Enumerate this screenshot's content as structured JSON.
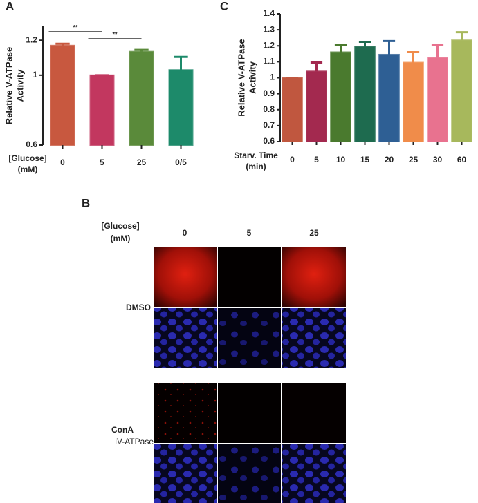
{
  "chart_data": [
    {
      "type": "bar",
      "label": "A",
      "ylabel": [
        "Relative V-ATPase",
        "Activity"
      ],
      "xlabel": [
        "[Glucose]",
        "(mM)"
      ],
      "categories": [
        "0",
        "5",
        "25",
        "0/5"
      ],
      "values": [
        1.17,
        1.0,
        1.135,
        1.03
      ],
      "errors": [
        0.01,
        0,
        0.01,
        0.075
      ],
      "colors": [
        "#c8583f",
        "#c2375f",
        "#5a8a3a",
        "#1d8a6a"
      ],
      "annotations": [
        "**",
        "**"
      ],
      "ylim": [
        0.6,
        1.28
      ],
      "yticks": [
        0.6,
        1.0,
        1.2
      ]
    },
    {
      "type": "bar",
      "label": "C",
      "ylabel": [
        "Relative V-ATPase",
        "Activity"
      ],
      "xlabel": [
        "Starv. Time",
        "(min)"
      ],
      "categories": [
        "0",
        "5",
        "10",
        "15",
        "20",
        "25",
        "30",
        "60"
      ],
      "values": [
        1.0,
        1.04,
        1.16,
        1.195,
        1.145,
        1.095,
        1.125,
        1.235
      ],
      "errors": [
        0,
        0.055,
        0.045,
        0.03,
        0.085,
        0.065,
        0.08,
        0.05
      ],
      "colors": [
        "#c0573f",
        "#a3294f",
        "#4a7a2e",
        "#1e6b4f",
        "#2e5f94",
        "#f08c4a",
        "#e8728f",
        "#a7b85c"
      ],
      "ylim": [
        0.6,
        1.4
      ],
      "yticks": [
        0.6,
        0.7,
        0.8,
        0.9,
        1.0,
        1.1,
        1.2,
        1.3,
        1.4
      ]
    }
  ],
  "panel_b": {
    "label": "B",
    "header": [
      "[Glucose]",
      "(mM)"
    ],
    "columns": [
      "0",
      "5",
      "25"
    ],
    "rows": [
      "DMSO",
      "ConA",
      "iV-ATPase"
    ]
  }
}
